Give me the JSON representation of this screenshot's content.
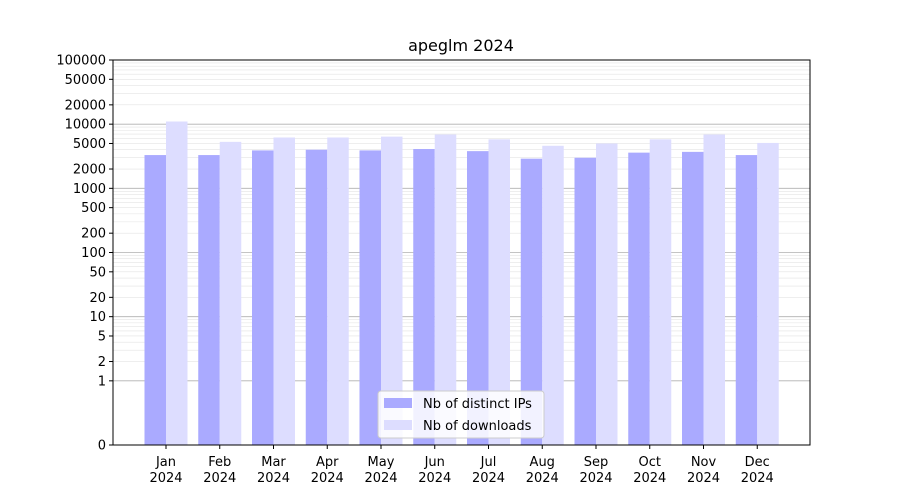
{
  "chart_data": {
    "type": "bar",
    "title": "apeglm 2024",
    "xlabel": "",
    "ylabel": "",
    "yscale": "symlog",
    "ylim": [
      0,
      100000
    ],
    "yticks": [
      0,
      1,
      2,
      5,
      10,
      20,
      50,
      100,
      200,
      500,
      1000,
      2000,
      5000,
      10000,
      20000,
      50000,
      100000
    ],
    "ytick_labels": [
      "0",
      "1",
      "2",
      "5",
      "10",
      "20",
      "50",
      "100",
      "200",
      "500",
      "1000",
      "2000",
      "5000",
      "10000",
      "20000",
      "50000",
      "100000"
    ],
    "categories": [
      "Jan\n2024",
      "Feb\n2024",
      "Mar\n2024",
      "Apr\n2024",
      "May\n2024",
      "Jun\n2024",
      "Jul\n2024",
      "Aug\n2024",
      "Sep\n2024",
      "Oct\n2024",
      "Nov\n2024",
      "Dec\n2024"
    ],
    "series": [
      {
        "name": "Nb of distinct IPs",
        "color": "#aaaaff",
        "values": [
          3300,
          3300,
          3900,
          4000,
          3900,
          4100,
          3800,
          2900,
          3000,
          3600,
          3700,
          3300
        ]
      },
      {
        "name": "Nb of downloads",
        "color": "#ddddff",
        "values": [
          11000,
          5300,
          6200,
          6200,
          6400,
          6900,
          5800,
          4600,
          5000,
          5800,
          6900,
          5100
        ]
      }
    ],
    "grid": true,
    "legend_position": "bottom-center"
  }
}
